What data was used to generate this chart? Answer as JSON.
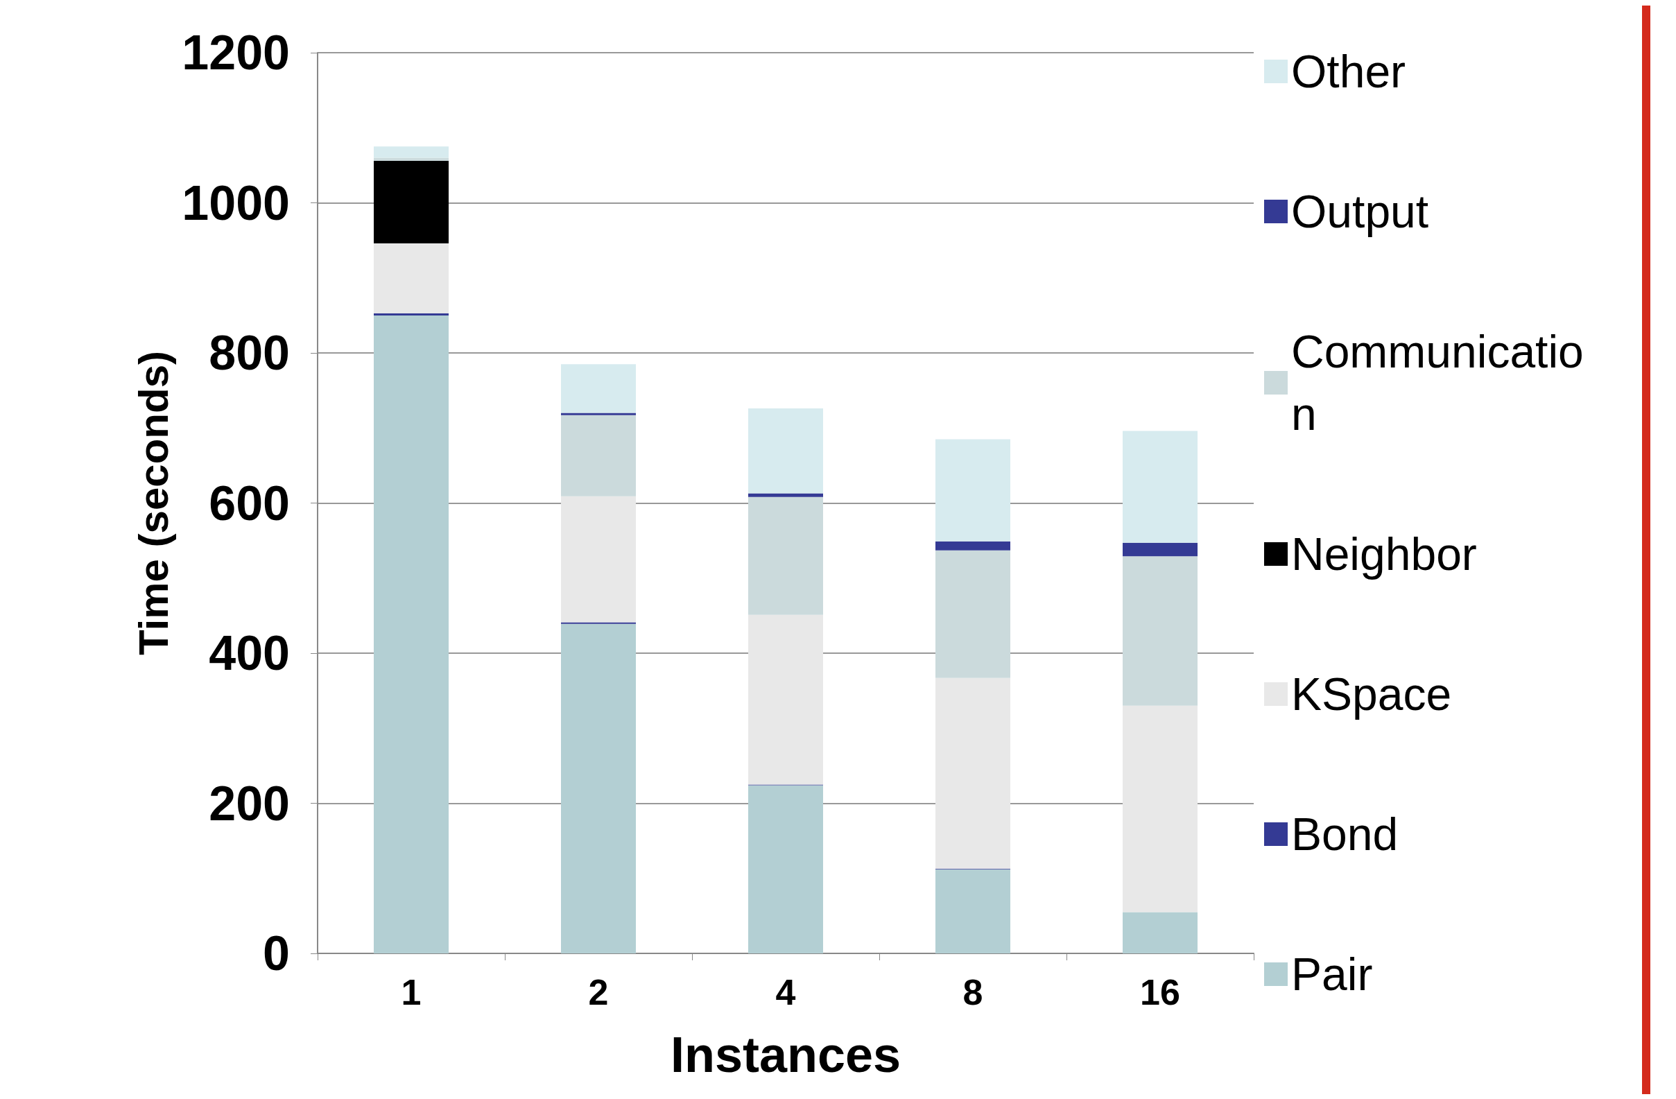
{
  "chart_data": {
    "type": "bar",
    "stacked": true,
    "xlabel": "Instances",
    "ylabel": "Time (seconds)",
    "categories": [
      "1",
      "2",
      "4",
      "8",
      "16"
    ],
    "ylim": [
      0,
      1200
    ],
    "yticks": [
      0,
      200,
      400,
      600,
      800,
      1000,
      1200
    ],
    "grid": "y",
    "legend": "right",
    "series": [
      {
        "name": "Pair",
        "color": "#b3cfd3",
        "values": [
          850,
          439,
          224,
          112,
          55
        ]
      },
      {
        "name": "Bond",
        "color": "#343a94",
        "values": [
          3,
          2,
          1,
          1,
          0
        ]
      },
      {
        "name": "KSpace",
        "color": "#e8e8e8",
        "values": [
          93,
          168,
          226,
          254,
          275
        ]
      },
      {
        "name": "Neighbor",
        "color": "#000000",
        "values": [
          110,
          0,
          0,
          0,
          0
        ]
      },
      {
        "name": "Communication",
        "color": "#cbdadc",
        "values": [
          4,
          108,
          157,
          170,
          199
        ]
      },
      {
        "name": "Output",
        "color": "#343a94",
        "values": [
          0,
          3,
          5,
          12,
          18
        ]
      },
      {
        "name": "Other",
        "color": "#d7ebef",
        "values": [
          15,
          65,
          113,
          136,
          149
        ]
      }
    ]
  }
}
